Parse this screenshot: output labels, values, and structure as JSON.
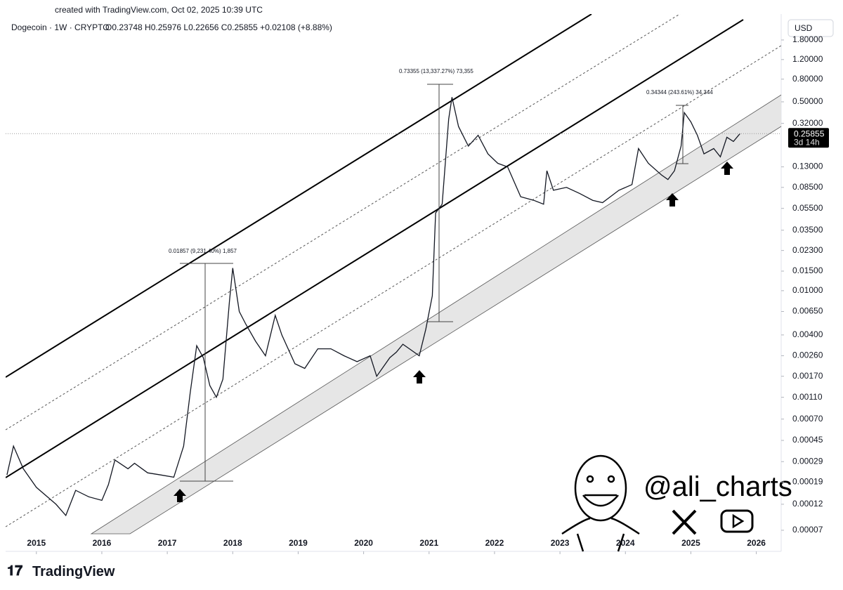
{
  "header": {
    "created": "created with TradingView.com, Oct 02, 2025 10:39 UTC",
    "symbol": "Dogecoin · 1W · CRYPTO",
    "ohlc": "O0.23748 H0.25976 L0.22656 C0.25855 +0.02108 (+8.88%)",
    "currency": "USD"
  },
  "chart_data": {
    "type": "line",
    "color": "#131722",
    "log_scale": true,
    "x": [
      2014.55,
      2014.65,
      2014.8,
      2015.0,
      2015.3,
      2015.45,
      2015.6,
      2015.8,
      2016.0,
      2016.1,
      2016.2,
      2016.4,
      2016.5,
      2016.7,
      2016.9,
      2017.1,
      2017.25,
      2017.35,
      2017.45,
      2017.55,
      2017.65,
      2017.75,
      2017.85,
      2017.95,
      2018.0,
      2018.1,
      2018.2,
      2018.35,
      2018.5,
      2018.65,
      2018.75,
      2018.95,
      2019.1,
      2019.3,
      2019.5,
      2019.7,
      2019.9,
      2020.1,
      2020.2,
      2020.4,
      2020.5,
      2020.6,
      2020.7,
      2020.85,
      2020.95,
      2021.05,
      2021.1,
      2021.2,
      2021.3,
      2021.35,
      2021.45,
      2021.6,
      2021.75,
      2021.9,
      2022.05,
      2022.2,
      2022.4,
      2022.6,
      2022.75,
      2022.8,
      2022.9,
      2023.1,
      2023.3,
      2023.5,
      2023.65,
      2023.9,
      2024.1,
      2024.2,
      2024.35,
      2024.55,
      2024.65,
      2024.75,
      2024.85,
      2024.9,
      2025.0,
      2025.1,
      2025.2,
      2025.35,
      2025.45,
      2025.55,
      2025.65,
      2025.75
    ],
    "values": [
      0.00022,
      0.0004,
      0.00025,
      0.00017,
      0.00012,
      9.5e-05,
      0.00016,
      0.00014,
      0.00013,
      0.00018,
      0.0003,
      0.00025,
      0.00028,
      0.00023,
      0.00022,
      0.00021,
      0.0004,
      0.0012,
      0.0032,
      0.0025,
      0.0014,
      0.0011,
      0.0016,
      0.008,
      0.016,
      0.0065,
      0.005,
      0.0035,
      0.0026,
      0.006,
      0.004,
      0.0022,
      0.002,
      0.003,
      0.003,
      0.0026,
      0.0023,
      0.0026,
      0.0017,
      0.0025,
      0.0028,
      0.0033,
      0.003,
      0.0026,
      0.0045,
      0.009,
      0.05,
      0.06,
      0.35,
      0.55,
      0.3,
      0.2,
      0.25,
      0.17,
      0.14,
      0.13,
      0.07,
      0.065,
      0.06,
      0.12,
      0.08,
      0.085,
      0.075,
      0.065,
      0.062,
      0.08,
      0.09,
      0.19,
      0.14,
      0.11,
      0.1,
      0.12,
      0.2,
      0.4,
      0.33,
      0.25,
      0.17,
      0.19,
      0.16,
      0.24,
      0.22,
      0.25855
    ],
    "xlim": [
      2014.53,
      2026.38
    ],
    "xticks": [
      2015,
      2016,
      2017,
      2018,
      2019,
      2020,
      2021,
      2022,
      2023,
      2024,
      2025,
      2026
    ],
    "ylim": [
      4.52e-05,
      3.08
    ],
    "yticks": [
      {
        "value": 1.8,
        "label": "1.80000"
      },
      {
        "value": 1.2,
        "label": "1.20000"
      },
      {
        "value": 0.8,
        "label": "0.80000"
      },
      {
        "value": 0.5,
        "label": "0.50000"
      },
      {
        "value": 0.32,
        "label": "0.32000"
      },
      {
        "value": 0.13,
        "label": "0.13000"
      },
      {
        "value": 0.085,
        "label": "0.08500"
      },
      {
        "value": 0.055,
        "label": "0.05500"
      },
      {
        "value": 0.035,
        "label": "0.03500"
      },
      {
        "value": 0.023,
        "label": "0.02300"
      },
      {
        "value": 0.015,
        "label": "0.01500"
      },
      {
        "value": 0.01,
        "label": "0.01000"
      },
      {
        "value": 0.0065,
        "label": "0.00650"
      },
      {
        "value": 0.004,
        "label": "0.00400"
      },
      {
        "value": 0.0026,
        "label": "0.00260"
      },
      {
        "value": 0.0017,
        "label": "0.00170"
      },
      {
        "value": 0.0011,
        "label": "0.00110"
      },
      {
        "value": 0.0007,
        "label": "0.00070"
      },
      {
        "value": 0.00045,
        "label": "0.00045"
      },
      {
        "value": 0.00029,
        "label": "0.00029"
      },
      {
        "value": 0.00019,
        "label": "0.00019"
      },
      {
        "value": 0.00012,
        "label": "0.00012"
      },
      {
        "value": 7e-05,
        "label": "0.00007"
      }
    ],
    "last_price": {
      "value": 0.25855,
      "label": "0.25855"
    },
    "countdown": "3d 14h",
    "annotations": [
      "0.01857 (9,231.40%) 1,857",
      "0.73355 (13,337.27%) 73,355",
      "0.34344 (243.61%) 34,344"
    ]
  },
  "watermark": {
    "handle": "@ali_charts"
  },
  "footer": {
    "brand": "TradingView"
  }
}
